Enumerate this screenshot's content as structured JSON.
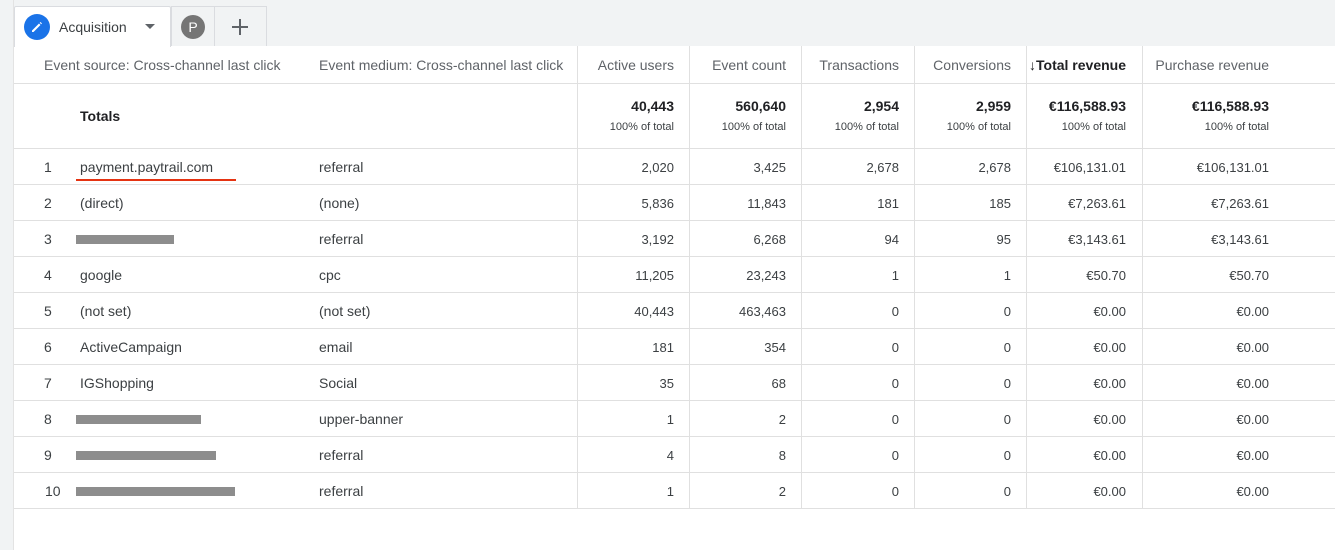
{
  "tabs": {
    "active_label": "Acquisition",
    "avatar_letter": "P"
  },
  "table": {
    "headers": {
      "source": "Event source: Cross-channel last click",
      "medium": "Event medium: Cross-channel last click",
      "active_users": "Active users",
      "event_count": "Event count",
      "transactions": "Transactions",
      "conversions": "Conversions",
      "total_revenue": "↓Total revenue",
      "purchase_revenue": "Purchase revenue"
    },
    "totals": {
      "label": "Totals",
      "active_users": "40,443",
      "event_count": "560,640",
      "transactions": "2,954",
      "conversions": "2,959",
      "total_revenue": "€116,588.93",
      "purchase_revenue": "€116,588.93",
      "pct": "100% of total"
    },
    "rows": [
      {
        "idx": "1",
        "source": "payment.paytrail.com",
        "medium": "referral",
        "active_users": "2,020",
        "event_count": "3,425",
        "transactions": "2,678",
        "conversions": "2,678",
        "total_revenue": "€106,131.01",
        "purchase_revenue": "€106,131.01"
      },
      {
        "idx": "2",
        "source": "(direct)",
        "medium": "(none)",
        "active_users": "5,836",
        "event_count": "11,843",
        "transactions": "181",
        "conversions": "185",
        "total_revenue": "€7,263.61",
        "purchase_revenue": "€7,263.61"
      },
      {
        "idx": "3",
        "source": "",
        "medium": "referral",
        "active_users": "3,192",
        "event_count": "6,268",
        "transactions": "94",
        "conversions": "95",
        "total_revenue": "€3,143.61",
        "purchase_revenue": "€3,143.61"
      },
      {
        "idx": "4",
        "source": "google",
        "medium": "cpc",
        "active_users": "11,205",
        "event_count": "23,243",
        "transactions": "1",
        "conversions": "1",
        "total_revenue": "€50.70",
        "purchase_revenue": "€50.70"
      },
      {
        "idx": "5",
        "source": "(not set)",
        "medium": "(not set)",
        "active_users": "40,443",
        "event_count": "463,463",
        "transactions": "0",
        "conversions": "0",
        "total_revenue": "€0.00",
        "purchase_revenue": "€0.00"
      },
      {
        "idx": "6",
        "source": "ActiveCampaign",
        "medium": "email",
        "active_users": "181",
        "event_count": "354",
        "transactions": "0",
        "conversions": "0",
        "total_revenue": "€0.00",
        "purchase_revenue": "€0.00"
      },
      {
        "idx": "7",
        "source": "IGShopping",
        "medium": "Social",
        "active_users": "35",
        "event_count": "68",
        "transactions": "0",
        "conversions": "0",
        "total_revenue": "€0.00",
        "purchase_revenue": "€0.00"
      },
      {
        "idx": "8",
        "source": "",
        "medium": "upper-banner",
        "active_users": "1",
        "event_count": "2",
        "transactions": "0",
        "conversions": "0",
        "total_revenue": "€0.00",
        "purchase_revenue": "€0.00"
      },
      {
        "idx": "9",
        "source": "",
        "medium": "referral",
        "active_users": "4",
        "event_count": "8",
        "transactions": "0",
        "conversions": "0",
        "total_revenue": "€0.00",
        "purchase_revenue": "€0.00"
      },
      {
        "idx": "10",
        "source": "",
        "medium": "referral",
        "active_users": "1",
        "event_count": "2",
        "transactions": "0",
        "conversions": "0",
        "total_revenue": "€0.00",
        "purchase_revenue": "€0.00"
      }
    ]
  }
}
